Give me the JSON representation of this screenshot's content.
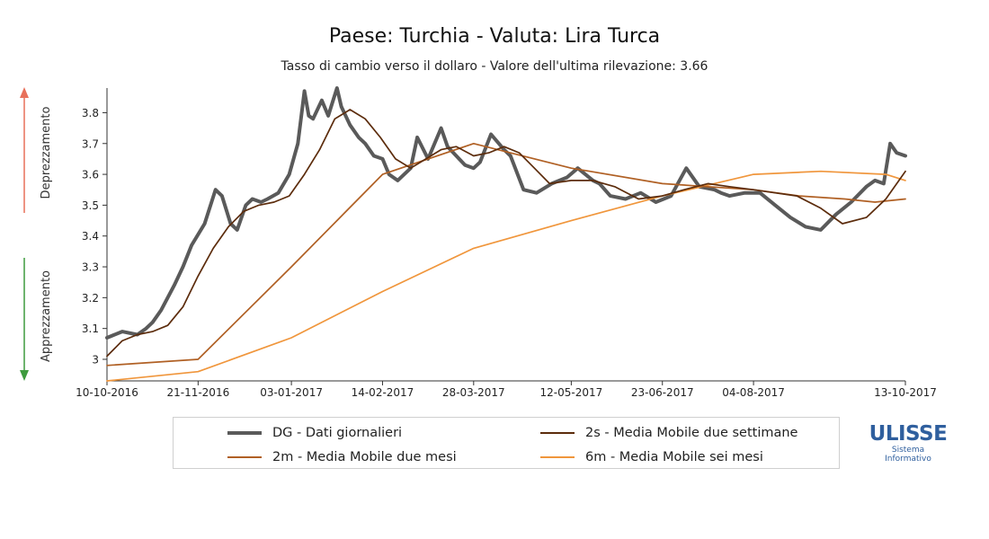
{
  "title": "Paese: Turchia - Valuta: Lira Turca",
  "subtitle": "Tasso di cambio verso il dollaro - Valore dell'ultima rilevazione: 3.66",
  "side_labels": {
    "top": "Deprezzamento",
    "bottom": "Apprezzamento"
  },
  "colors": {
    "up_arrow": "#e8705a",
    "down_arrow": "#3e9b3e"
  },
  "legend": [
    {
      "label": "DG - Dati giornalieri",
      "color": "#5a5a5a"
    },
    {
      "label": "2s - Media Mobile due settimane",
      "color": "#5c2c0c"
    },
    {
      "label": "2m - Media Mobile due mesi",
      "color": "#b06024"
    },
    {
      "label": "6m - Media Mobile sei mesi",
      "color": "#f0963c"
    }
  ],
  "logo": {
    "word": "ULISSE",
    "line1": "Sistema",
    "line2": "Informativo"
  },
  "chart_data": {
    "type": "line",
    "ylim": [
      2.93,
      3.88
    ],
    "y_ticks": [
      3,
      3.1,
      3.2,
      3.3,
      3.4,
      3.5,
      3.6,
      3.7,
      3.8
    ],
    "y_tick_labels": [
      "3",
      "3.1",
      "3.2",
      "3.3",
      "3.4",
      "3.5",
      "3.6",
      "3.7",
      "3.8"
    ],
    "xlim": [
      "10-10-2016",
      "13-10-2017"
    ],
    "x_ticks": [
      "10-10-2016",
      "21-11-2016",
      "03-01-2017",
      "14-02-2017",
      "28-03-2017",
      "12-05-2017",
      "23-06-2017",
      "04-08-2017",
      "13-10-2017"
    ],
    "series": [
      {
        "name": "DG - Dati giornalieri",
        "color": "#5a5a5a",
        "width": 4,
        "x": [
          "10-10-2016",
          "17-10-2016",
          "24-10-2016",
          "28-10-2016",
          "31-10-2016",
          "04-11-2016",
          "10-11-2016",
          "14-11-2016",
          "18-11-2016",
          "24-11-2016",
          "29-11-2016",
          "02-12-2016",
          "06-12-2016",
          "09-12-2016",
          "13-12-2016",
          "16-12-2016",
          "20-12-2016",
          "23-12-2016",
          "28-12-2016",
          "02-01-2017",
          "06-01-2017",
          "09-01-2017",
          "11-01-2017",
          "13-01-2017",
          "17-01-2017",
          "20-01-2017",
          "24-01-2017",
          "26-01-2017",
          "30-01-2017",
          "03-02-2017",
          "06-02-2017",
          "10-02-2017",
          "14-02-2017",
          "17-02-2017",
          "21-02-2017",
          "27-02-2017",
          "02-03-2017",
          "07-03-2017",
          "13-03-2017",
          "16-03-2017",
          "20-03-2017",
          "24-03-2017",
          "28-03-2017",
          "31-03-2017",
          "05-04-2017",
          "11-04-2017",
          "14-04-2017",
          "20-04-2017",
          "26-04-2017",
          "03-05-2017",
          "10-05-2017",
          "15-05-2017",
          "22-05-2017",
          "25-05-2017",
          "30-05-2017",
          "06-06-2017",
          "13-06-2017",
          "20-06-2017",
          "27-06-2017",
          "04-07-2017",
          "10-07-2017",
          "17-07-2017",
          "20-07-2017",
          "24-07-2017",
          "31-07-2017",
          "07-08-2017",
          "14-08-2017",
          "21-08-2017",
          "28-08-2017",
          "04-09-2017",
          "11-09-2017",
          "18-09-2017",
          "25-09-2017",
          "29-09-2017",
          "03-10-2017",
          "06-10-2017",
          "09-10-2017",
          "13-10-2017"
        ],
        "values": [
          3.07,
          3.09,
          3.08,
          3.1,
          3.12,
          3.16,
          3.24,
          3.3,
          3.37,
          3.44,
          3.55,
          3.53,
          3.44,
          3.42,
          3.5,
          3.52,
          3.51,
          3.52,
          3.54,
          3.6,
          3.7,
          3.87,
          3.79,
          3.78,
          3.84,
          3.79,
          3.88,
          3.82,
          3.76,
          3.72,
          3.7,
          3.66,
          3.65,
          3.6,
          3.58,
          3.62,
          3.72,
          3.65,
          3.75,
          3.69,
          3.66,
          3.63,
          3.62,
          3.64,
          3.73,
          3.68,
          3.66,
          3.55,
          3.54,
          3.57,
          3.59,
          3.62,
          3.58,
          3.57,
          3.53,
          3.52,
          3.54,
          3.51,
          3.53,
          3.62,
          3.56,
          3.55,
          3.54,
          3.53,
          3.54,
          3.54,
          3.5,
          3.46,
          3.43,
          3.42,
          3.47,
          3.51,
          3.56,
          3.58,
          3.57,
          3.7,
          3.67,
          3.66
        ]
      },
      {
        "name": "2s - Media Mobile due settimane",
        "color": "#5c2c0c",
        "width": 1.7,
        "x": [
          "10-10-2016",
          "17-10-2016",
          "24-10-2016",
          "31-10-2016",
          "07-11-2016",
          "14-11-2016",
          "21-11-2016",
          "28-11-2016",
          "05-12-2016",
          "12-12-2016",
          "19-12-2016",
          "26-12-2016",
          "02-01-2017",
          "09-01-2017",
          "16-01-2017",
          "23-01-2017",
          "30-01-2017",
          "06-02-2017",
          "13-02-2017",
          "20-02-2017",
          "27-02-2017",
          "06-03-2017",
          "13-03-2017",
          "20-03-2017",
          "28-03-2017",
          "04-04-2017",
          "11-04-2017",
          "18-04-2017",
          "25-04-2017",
          "02-05-2017",
          "12-05-2017",
          "22-05-2017",
          "01-06-2017",
          "12-06-2017",
          "23-06-2017",
          "03-07-2017",
          "14-07-2017",
          "24-07-2017",
          "04-08-2017",
          "14-08-2017",
          "24-08-2017",
          "04-09-2017",
          "14-09-2017",
          "25-09-2017",
          "04-10-2017",
          "13-10-2017"
        ],
        "values": [
          3.01,
          3.06,
          3.08,
          3.09,
          3.11,
          3.17,
          3.27,
          3.36,
          3.43,
          3.48,
          3.5,
          3.51,
          3.53,
          3.6,
          3.68,
          3.78,
          3.81,
          3.78,
          3.72,
          3.65,
          3.62,
          3.65,
          3.68,
          3.69,
          3.66,
          3.67,
          3.69,
          3.67,
          3.62,
          3.57,
          3.58,
          3.58,
          3.56,
          3.52,
          3.53,
          3.55,
          3.57,
          3.56,
          3.55,
          3.54,
          3.53,
          3.49,
          3.44,
          3.46,
          3.52,
          3.61
        ]
      },
      {
        "name": "2m - Media Mobile due mesi",
        "color": "#b06024",
        "width": 1.7,
        "x": [
          "10-10-2016",
          "21-11-2016",
          "03-01-2017",
          "14-02-2017",
          "28-03-2017",
          "12-05-2017",
          "23-06-2017",
          "04-08-2017",
          "25-08-2017",
          "15-09-2017",
          "29-09-2017",
          "13-10-2017"
        ],
        "values": [
          2.98,
          3.0,
          3.3,
          3.6,
          3.7,
          3.62,
          3.57,
          3.55,
          3.53,
          3.52,
          3.51,
          3.52
        ]
      },
      {
        "name": "6m - Media Mobile sei mesi",
        "color": "#f0963c",
        "width": 1.7,
        "x": [
          "10-10-2016",
          "21-11-2016",
          "03-01-2017",
          "14-02-2017",
          "28-03-2017",
          "12-05-2017",
          "23-06-2017",
          "04-08-2017",
          "04-09-2017",
          "04-10-2017",
          "13-10-2017"
        ],
        "values": [
          2.93,
          2.96,
          3.07,
          3.22,
          3.36,
          3.45,
          3.53,
          3.6,
          3.61,
          3.6,
          3.58
        ]
      }
    ]
  }
}
